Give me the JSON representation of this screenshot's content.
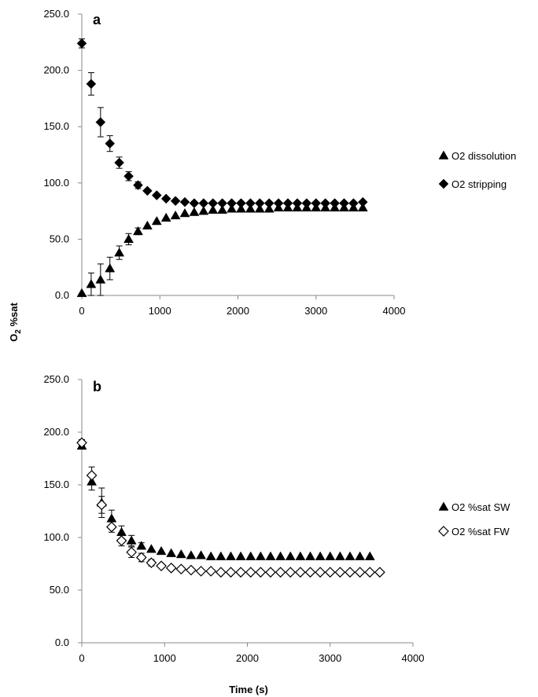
{
  "chart_data": [
    {
      "panel": "a",
      "type": "scatter",
      "xlabel": "",
      "ylabel": "O2 %sat",
      "xlim": [
        0,
        4000
      ],
      "ylim": [
        0,
        250
      ],
      "xticks": [
        "0",
        "1000",
        "2000",
        "3000",
        "4000"
      ],
      "yticks": [
        "0.0",
        "50.0",
        "100.0",
        "150.0",
        "200.0",
        "250.0"
      ],
      "series": [
        {
          "name": "O2 dissolution",
          "marker": "triangle-filled",
          "x": [
            0,
            120,
            240,
            360,
            480,
            600,
            720,
            840,
            960,
            1080,
            1200,
            1320,
            1440,
            1560,
            1680,
            1800,
            1920,
            2040,
            2160,
            2280,
            2400,
            2520,
            2640,
            2760,
            2880,
            3000,
            3120,
            3240,
            3360,
            3480,
            3600
          ],
          "y": [
            2,
            10,
            14,
            24,
            38,
            50,
            57,
            62,
            66,
            69,
            71,
            73,
            74,
            75,
            76,
            76,
            77,
            77,
            77,
            77,
            77,
            78,
            78,
            78,
            78,
            78,
            78,
            78,
            78,
            78,
            78
          ],
          "err": [
            1,
            10,
            14,
            10,
            6,
            5,
            3,
            2,
            2,
            2,
            2,
            2,
            2,
            2,
            2,
            2,
            2,
            2,
            2,
            2,
            2,
            2,
            2,
            2,
            2,
            2,
            2,
            2,
            2,
            2,
            2
          ]
        },
        {
          "name": "O2 stripping",
          "marker": "diamond-filled",
          "x": [
            0,
            120,
            240,
            360,
            480,
            600,
            720,
            840,
            960,
            1080,
            1200,
            1320,
            1440,
            1560,
            1680,
            1800,
            1920,
            2040,
            2160,
            2280,
            2400,
            2520,
            2640,
            2760,
            2880,
            3000,
            3120,
            3240,
            3360,
            3480,
            3600
          ],
          "y": [
            224,
            188,
            154,
            135,
            118,
            106,
            98,
            93,
            89,
            86,
            84,
            83,
            82,
            82,
            82,
            82,
            82,
            82,
            82,
            82,
            82,
            82,
            82,
            82,
            82,
            82,
            82,
            82,
            82,
            82,
            83
          ],
          "err": [
            4,
            10,
            13,
            7,
            5,
            4,
            3,
            2,
            2,
            2,
            2,
            2,
            2,
            2,
            2,
            2,
            2,
            2,
            2,
            2,
            2,
            2,
            2,
            2,
            2,
            2,
            2,
            2,
            2,
            2,
            2
          ]
        }
      ],
      "legend": "right"
    },
    {
      "panel": "b",
      "type": "scatter",
      "xlabel": "Time (s)",
      "ylabel": "",
      "xlim": [
        0,
        4000
      ],
      "ylim": [
        0,
        250
      ],
      "xticks": [
        "0",
        "1000",
        "2000",
        "3000",
        "4000"
      ],
      "yticks": [
        "0.0",
        "50.0",
        "100.0",
        "150.0",
        "200.0",
        "250.0"
      ],
      "series": [
        {
          "name": "O2 %sat SW",
          "marker": "triangle-filled",
          "x": [
            0,
            120,
            240,
            360,
            480,
            600,
            720,
            840,
            960,
            1080,
            1200,
            1320,
            1440,
            1560,
            1680,
            1800,
            1920,
            2040,
            2160,
            2280,
            2400,
            2520,
            2640,
            2760,
            2880,
            3000,
            3120,
            3240,
            3360,
            3480
          ],
          "y": [
            187,
            153,
            133,
            118,
            105,
            97,
            92,
            89,
            87,
            85,
            84,
            83,
            83,
            82,
            82,
            82,
            82,
            82,
            82,
            82,
            82,
            82,
            82,
            82,
            82,
            82,
            82,
            82,
            82,
            82
          ],
          "err": [
            3,
            8,
            14,
            8,
            6,
            5,
            3,
            2,
            2,
            2,
            2,
            2,
            2,
            2,
            2,
            2,
            2,
            2,
            2,
            2,
            2,
            2,
            2,
            2,
            2,
            2,
            2,
            2,
            2,
            2
          ]
        },
        {
          "name": "O2 %sat FW",
          "marker": "diamond-open",
          "x": [
            0,
            120,
            240,
            360,
            480,
            600,
            720,
            840,
            960,
            1080,
            1200,
            1320,
            1440,
            1560,
            1680,
            1800,
            1920,
            2040,
            2160,
            2280,
            2400,
            2520,
            2640,
            2760,
            2880,
            3000,
            3120,
            3240,
            3360,
            3480,
            3600
          ],
          "y": [
            190,
            159,
            131,
            110,
            97,
            86,
            81,
            76,
            73,
            71,
            70,
            69,
            68,
            68,
            67,
            67,
            67,
            67,
            67,
            67,
            67,
            67,
            67,
            67,
            67,
            67,
            67,
            67,
            67,
            67,
            67
          ],
          "err": [
            3,
            8,
            8,
            5,
            5,
            5,
            4,
            3,
            2,
            2,
            2,
            2,
            2,
            2,
            2,
            2,
            2,
            2,
            2,
            2,
            2,
            2,
            2,
            2,
            2,
            2,
            2,
            2,
            2,
            2,
            2
          ]
        }
      ],
      "legend": "right"
    }
  ],
  "shared_ylabel": {
    "base": "O",
    "subscript": "2",
    "suffix": " %sat"
  }
}
